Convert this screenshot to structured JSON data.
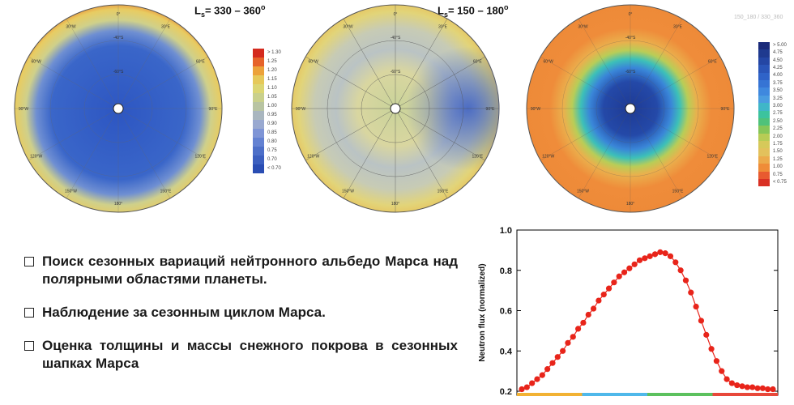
{
  "maps": [
    {
      "id": "map-ls-330-360",
      "title_prefix": "L",
      "title_sub": "s",
      "title_text": "= 330 – 360",
      "title_sup": "o"
    },
    {
      "id": "map-ls-150-180",
      "title_prefix": "L",
      "title_sub": "s",
      "title_text": "= 150 – 180",
      "title_sup": "o"
    },
    {
      "id": "map-difference"
    }
  ],
  "map_grid_labels": [
    "0°",
    "30°E",
    "60°E",
    "90°E",
    "120°E",
    "150°E",
    "180°",
    "150°W",
    "120°W",
    "90°W",
    "60°W",
    "30°W"
  ],
  "map_lat_labels": [
    "-40°S",
    "-60°S"
  ],
  "scale_left": {
    "ticks": [
      "> 1.30",
      "1.25",
      "1.20",
      "1.15",
      "1.10",
      "1.05",
      "1.00",
      "0.95",
      "0.90",
      "0.85",
      "0.80",
      "0.75",
      "0.70",
      "< 0.70"
    ],
    "colors": [
      "#d42a1e",
      "#e6632a",
      "#eca23a",
      "#e6c95a",
      "#dcd673",
      "#c9d08c",
      "#b8c4a2",
      "#a9b6bf",
      "#99a9d0",
      "#7f95d6",
      "#6482d2",
      "#4d6fc8",
      "#3c5fbf",
      "#2a4db3"
    ]
  },
  "scale_right": {
    "ticks": [
      "> 5.00",
      "4.75",
      "4.50",
      "4.25",
      "4.00",
      "3.75",
      "3.50",
      "3.25",
      "3.00",
      "2.75",
      "2.50",
      "2.25",
      "2.00",
      "1.75",
      "1.50",
      "1.25",
      "1.00",
      "0.75",
      "< 0.75"
    ],
    "colors": [
      "#1a2a7a",
      "#1f3a8f",
      "#2446a4",
      "#2a55b8",
      "#2f63c8",
      "#3674d4",
      "#3f88de",
      "#4a9ce0",
      "#3fb6c8",
      "#3cc39e",
      "#4fc27a",
      "#86c658",
      "#b7cc55",
      "#d6c95a",
      "#e3c15c",
      "#ecaa4b",
      "#ef8c38",
      "#e85a30",
      "#d93024"
    ]
  },
  "map_id_text": "150_180 / 330_360",
  "bullets": [
    "Поиск сезонных вариаций нейтронного альбедо Марса над полярными областями планеты.",
    "Наблюдение за сезонным циклом Марса.",
    "Оценка толщины и массы снежного покрова в сезонных шапках Марса"
  ],
  "chart_data": {
    "type": "line",
    "ylabel": "Neutron flux (normalized)",
    "xlabel": "",
    "ylim": [
      0.18,
      1.0
    ],
    "y_ticks": [
      "1.0",
      "0.8",
      "0.6",
      "0.4",
      "0.2"
    ],
    "y_tick_values": [
      1.0,
      0.8,
      0.6,
      0.4,
      0.2
    ],
    "x": [
      0,
      1,
      2,
      3,
      4,
      5,
      6,
      7,
      8,
      9,
      10,
      11,
      12,
      13,
      14,
      15,
      16,
      17,
      18,
      19,
      20,
      21,
      22,
      23,
      24,
      25,
      26,
      27,
      28,
      29,
      30,
      31,
      32,
      33,
      34,
      35,
      36,
      37,
      38,
      39,
      40,
      41,
      42,
      43,
      44,
      45,
      46,
      47,
      48,
      49
    ],
    "series": [
      {
        "color": "#e8241a",
        "values": [
          0.21,
          0.22,
          0.24,
          0.26,
          0.28,
          0.31,
          0.34,
          0.37,
          0.4,
          0.44,
          0.47,
          0.51,
          0.54,
          0.58,
          0.61,
          0.65,
          0.68,
          0.71,
          0.74,
          0.77,
          0.79,
          0.81,
          0.83,
          0.85,
          0.86,
          0.87,
          0.88,
          0.89,
          0.885,
          0.87,
          0.84,
          0.8,
          0.75,
          0.69,
          0.62,
          0.55,
          0.48,
          0.41,
          0.35,
          0.3,
          0.26,
          0.24,
          0.23,
          0.225,
          0.22,
          0.22,
          0.215,
          0.215,
          0.21,
          0.21
        ]
      }
    ],
    "xaxis_color_bands": [
      "#f2b233",
      "#4fb8ea",
      "#5cc15e",
      "#e8483a"
    ],
    "grid": false
  }
}
